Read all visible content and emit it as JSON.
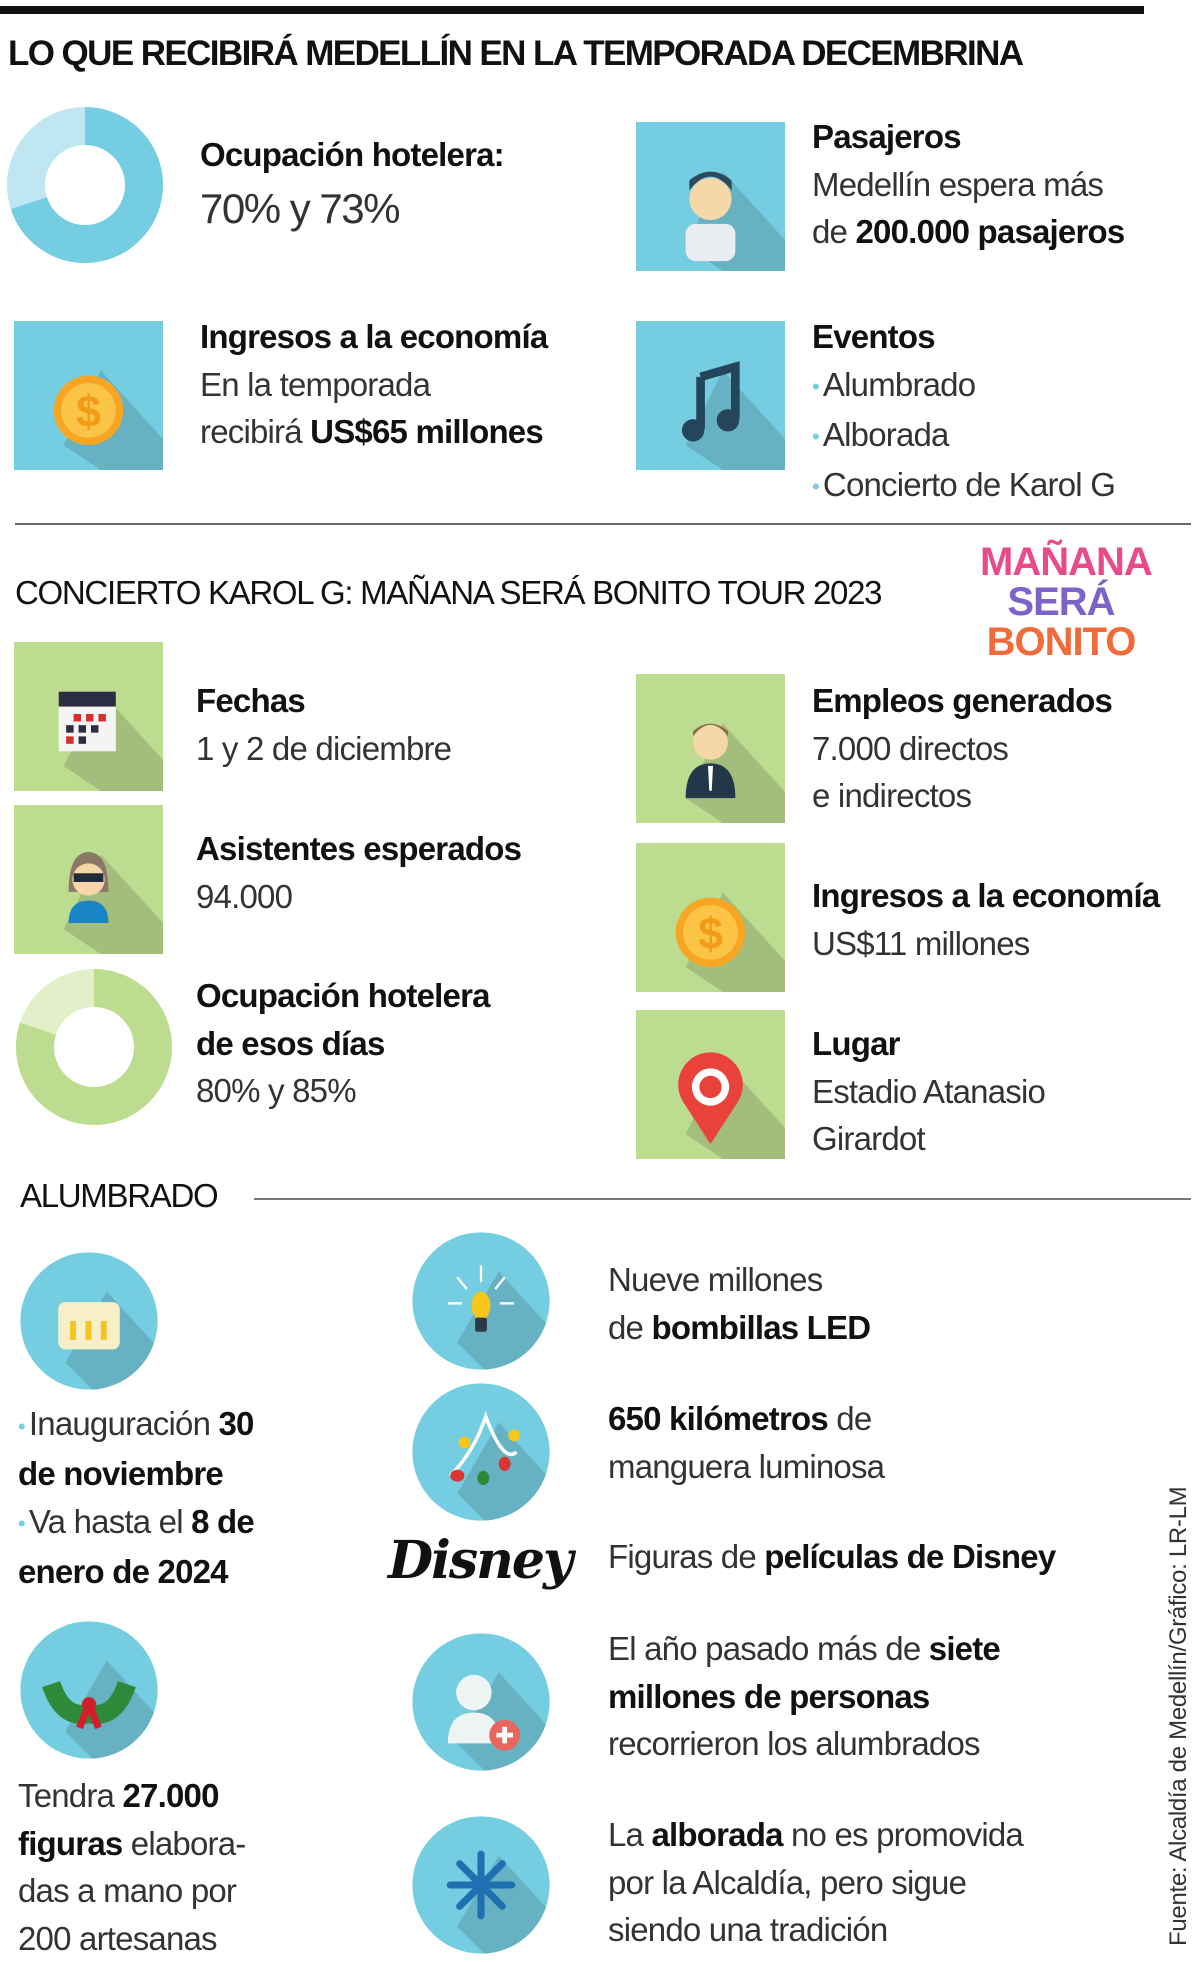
{
  "title": "LO QUE RECIBIRÁ MEDELLÍN EN LA TEMPORADA DECEMBRINA",
  "colors": {
    "blue": "#74cde0",
    "blue_light": "#bfe6f1",
    "blue_shadow": "#66b1c2",
    "green": "#bcdc8f",
    "green_light": "#e2efc8",
    "green_shadow": "#a2bd7c"
  },
  "season": {
    "hotel": {
      "heading": "Ocupación hotelera:",
      "value": "70% y 73%",
      "fill_percent": 70
    },
    "passengers": {
      "heading": "Pasajeros",
      "line1": "Medellín espera más",
      "line2_pre": "de ",
      "line2_bold": "200.000 pasajeros",
      "icon": "person-icon"
    },
    "income": {
      "heading": "Ingresos a la economía",
      "line1": "En la temporada",
      "line2_pre": "recibirá ",
      "line2_bold": "US$65 millones",
      "icon": "dollar-coin-icon"
    },
    "events": {
      "heading": "Eventos",
      "items": [
        "Alumbrado",
        "Alborada",
        "Concierto de Karol G"
      ],
      "icon": "music-note-icon"
    }
  },
  "concert": {
    "heading": "CONCIERTO KAROL G: MAÑANA SERÁ BONITO TOUR 2023",
    "logo_text": [
      "MAÑANA",
      "SERÁ",
      "BONITO"
    ],
    "dates": {
      "heading": "Fechas",
      "value": "1 y 2 de diciembre",
      "icon": "calendar-icon"
    },
    "attendees": {
      "heading": "Asistentes esperados",
      "value": "94.000",
      "icon": "woman-sunglasses-icon"
    },
    "hotel": {
      "heading1": "Ocupación hotelera",
      "heading2": "de esos días",
      "value": "80% y 85%",
      "fill_percent": 80
    },
    "jobs": {
      "heading": "Empleos generados",
      "line1": "7.000 directos",
      "line2": "e indirectos",
      "icon": "operator-icon"
    },
    "income": {
      "heading": "Ingresos a la economía",
      "value": "US$11 millones",
      "icon": "dollar-coin-icon"
    },
    "place": {
      "heading": "Lugar",
      "line1": "Estadio Atanasio",
      "line2": "Girardot",
      "icon": "map-pin-icon"
    }
  },
  "lights": {
    "heading": "ALUMBRADO",
    "dates": {
      "b1_pre": "Inauguración ",
      "b1_bold": "30",
      "b1_bold2": "de noviembre",
      "b2_pre": "Va hasta el ",
      "b2_bold": "8 de",
      "b2_bold2": "enero de 2024"
    },
    "figures": {
      "pre": "Tendra ",
      "bold1": "27.000",
      "bold2": "figuras",
      "post": " elabora-",
      "line3": "das a mano por",
      "line4": "200 artesanas"
    },
    "bulbs": {
      "line1": "Nueve millones",
      "line2_pre": "de ",
      "line2_bold": "bombillas LED"
    },
    "hose": {
      "bold": "650 kilómetros",
      "post": " de",
      "line2": "manguera luminosa"
    },
    "disney": {
      "logo": "Disney",
      "pre": "Figuras de ",
      "bold": "películas de Disney"
    },
    "visitors": {
      "pre": "El año pasado más de ",
      "bold1": "siete",
      "bold2": "millones de personas",
      "line3": "recorrieron los alumbrados"
    },
    "alborada": {
      "pre": "La ",
      "bold": "alborada",
      "post": " no es promovida",
      "line2": "por la Alcaldía, pero sigue",
      "line3": "siendo una tradición"
    }
  },
  "source": "Fuente: Alcaldía de Medellín/Gráfico: LR-LM"
}
